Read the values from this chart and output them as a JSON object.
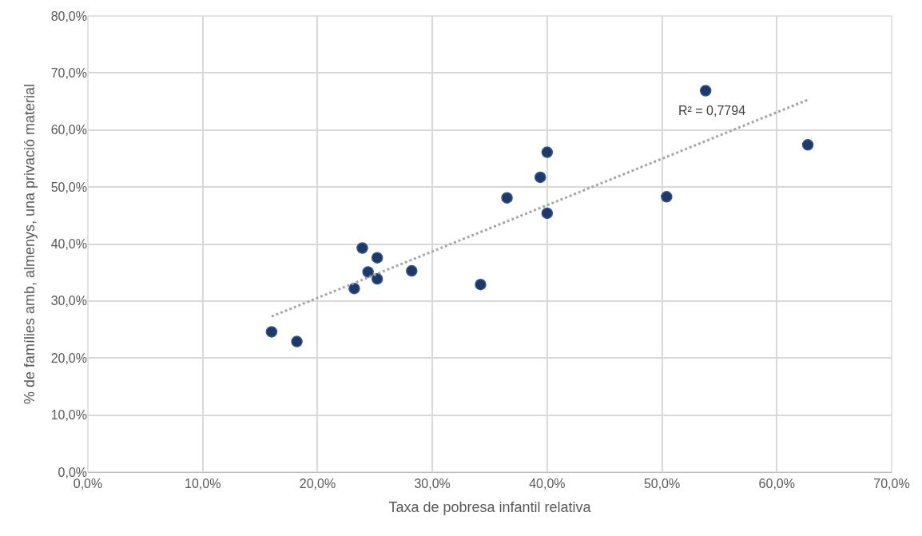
{
  "chart_data": {
    "type": "scatter",
    "xlabel": "Taxa de pobresa infantil relativa",
    "ylabel": "% de famílies amb, almenys, una privació material",
    "series": [
      {
        "color": "#1f3864",
        "marker": "circle",
        "x": [
          16.0,
          18.2,
          23.9,
          23.2,
          24.4,
          25.2,
          25.2,
          28.2,
          34.2,
          36.5,
          39.4,
          40.0,
          40.0,
          50.4,
          53.8,
          62.7
        ],
        "values": [
          24.6,
          22.9,
          39.3,
          32.2,
          35.1,
          37.6,
          33.9,
          35.3,
          32.9,
          48.1,
          51.7,
          56.1,
          45.4,
          48.3,
          66.9,
          57.4
        ]
      },
      {
        "type": "line",
        "color": "#a6a6a6",
        "line_style": "dotted",
        "marker": "none",
        "x": [
          16.0,
          62.7
        ],
        "values": [
          27.3,
          65.3
        ]
      }
    ],
    "annotations": [
      "R² = 0,7794"
    ],
    "xlim": [
      0,
      70
    ],
    "xticks": [
      {
        "value": 0,
        "label": "0,0%"
      },
      {
        "value": 10,
        "label": "10,0%"
      },
      {
        "value": 20,
        "label": "20,0%"
      },
      {
        "value": 30,
        "label": "30,0%"
      },
      {
        "value": 40,
        "label": "40,0%"
      },
      {
        "value": 50,
        "label": "50,0%"
      },
      {
        "value": 60,
        "label": "60,0%"
      },
      {
        "value": 70,
        "label": "70,0%"
      }
    ],
    "ylim": [
      0,
      80
    ],
    "yticks": [
      {
        "value": 0,
        "label": "0,0%"
      },
      {
        "value": 10,
        "label": "10,0%"
      },
      {
        "value": 20,
        "label": "20,0%"
      },
      {
        "value": 30,
        "label": "30,0%"
      },
      {
        "value": 40,
        "label": "40,0%"
      },
      {
        "value": 50,
        "label": "50,0%"
      },
      {
        "value": 60,
        "label": "60,0%"
      },
      {
        "value": 70,
        "label": "70,0%"
      },
      {
        "value": 80,
        "label": "80,0%"
      }
    ],
    "grid": true
  }
}
